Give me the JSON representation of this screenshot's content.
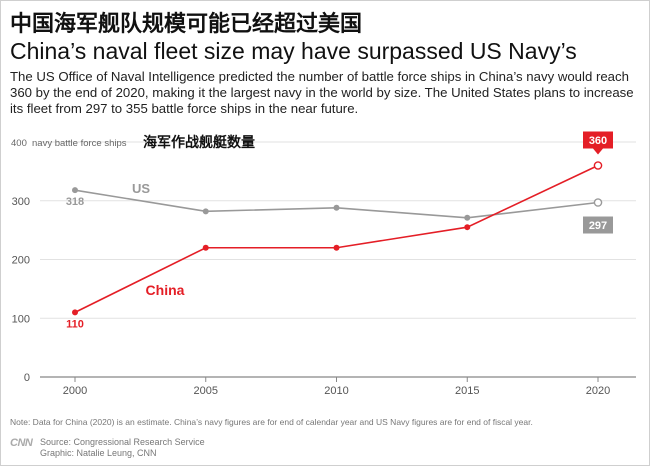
{
  "header": {
    "title_cn": "中国海军舰队规模可能已经超过美国",
    "title_en": "China’s naval fleet size may have surpassed US Navy’s",
    "description": "The US Office of Naval Intelligence predicted the number of battle force ships in China’s navy would reach 360 by the end of 2020, making it the largest navy in the world by size. The United States plans to increase its fleet from 297 to 355 battle force ships in the near future."
  },
  "chart_data": {
    "type": "line",
    "ylabel": "navy battle force ships",
    "ylabel_cn": "海军作战舰艇数量",
    "x": [
      2000,
      2005,
      2010,
      2015,
      2020
    ],
    "x_tick_labels": [
      "2000",
      "2005",
      "2010",
      "2015",
      "2020"
    ],
    "ylim": [
      0,
      400
    ],
    "y_ticks": [
      0,
      100,
      200,
      300,
      400
    ],
    "y_tick_labels": [
      "0",
      "100",
      "200",
      "300",
      "400"
    ],
    "grid": true,
    "series": [
      {
        "name": "US",
        "color": "#999999",
        "values": [
          318,
          282,
          288,
          271,
          297
        ],
        "labels": {
          "first": "318",
          "last": "297"
        }
      },
      {
        "name": "China",
        "color": "#e41e26",
        "values": [
          110,
          220,
          220,
          255,
          360
        ],
        "labels": {
          "first": "110",
          "last": "360"
        }
      }
    ]
  },
  "footer": {
    "note": "Note: Data for China (2020) is an estimate. China’s navy figures are for end of calendar year and US Navy figures are for end of fiscal year.",
    "logo": "CNN",
    "source": "Source: Congressional Research Service",
    "graphic": "Graphic: Natalie Leung, CNN"
  }
}
